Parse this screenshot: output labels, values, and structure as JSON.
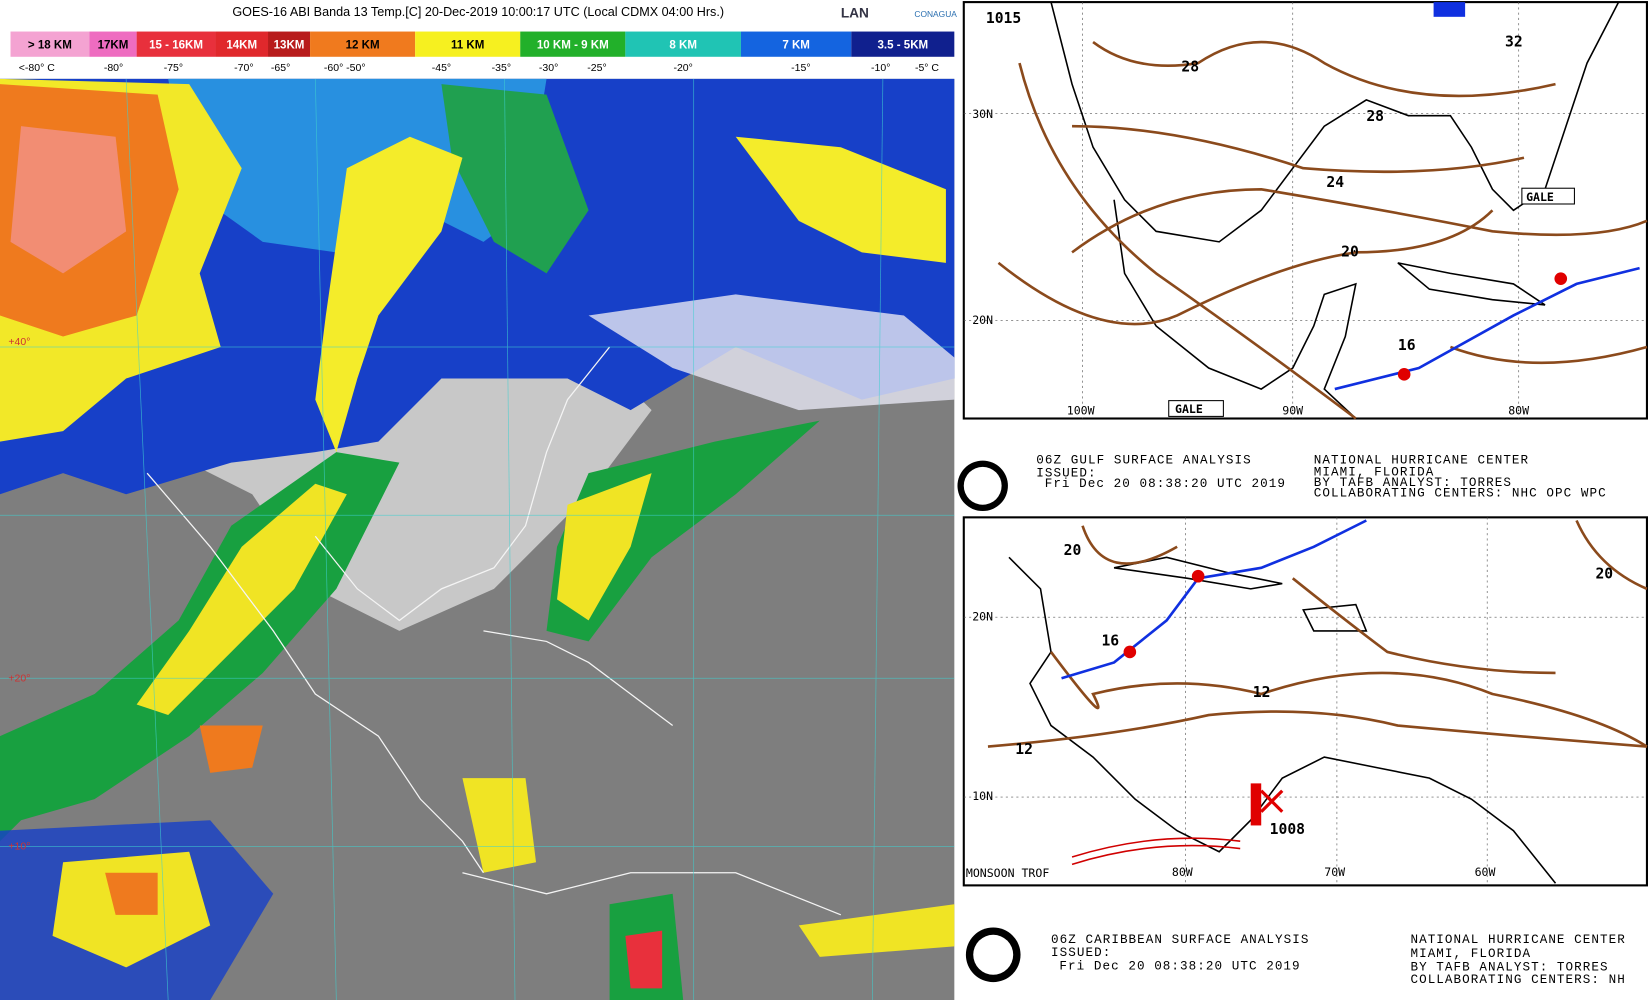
{
  "satellite": {
    "title": "GOES-16 ABI Banda 13 Temp.[C] 20-Dec-2019 10:00:17 UTC (Local CDMX  04:00 Hrs.)",
    "logos": [
      "LAN",
      "CONAGUA"
    ],
    "legend": [
      {
        "label": "> 18 KM",
        "color": "#f4a3d2"
      },
      {
        "label": "17KM",
        "color": "#ee6cc0"
      },
      {
        "label": "15 - 16KM",
        "color": "#e8303c"
      },
      {
        "label": "14KM",
        "color": "#e0282c"
      },
      {
        "label": "13KM",
        "color": "#b81c1c"
      },
      {
        "label": "12 KM",
        "color": "#f07a1e"
      },
      {
        "label": "11 KM",
        "color": "#f6f020"
      },
      {
        "label": "10 KM - 9 KM",
        "color": "#22b02a"
      },
      {
        "label": "8 KM",
        "color": "#20c4b4"
      },
      {
        "label": "7 KM",
        "color": "#1464e0"
      },
      {
        "label": "3.5 - 5KM",
        "color": "#10208e"
      }
    ],
    "temps": [
      "<-80° C",
      "-80°",
      "-75°",
      "-70°",
      "-65°",
      "-60° -50°",
      "-45°",
      "-35°",
      "-30°",
      "-25°",
      "-20°",
      "-15°",
      "-10°",
      "-5° C"
    ],
    "lat_labels": [
      "+40°",
      "+20°",
      "+10°"
    ]
  },
  "gulf_map": {
    "labels": [
      "1015",
      "28",
      "32",
      "28",
      "24",
      "20",
      "16",
      "30N",
      "20N",
      "100W",
      "90W",
      "80W",
      "GALE",
      "GALE"
    ],
    "header": {
      "title": "06Z GULF SURFACE ANALYSIS",
      "issued": "ISSUED:",
      "date": "Fri Dec 20 08:38:20 UTC 2019",
      "center": "NATIONAL HURRICANE CENTER",
      "place": "MIAMI, FLORIDA",
      "analyst": "BY TAFB ANALYST: TORRES",
      "collab": "COLLABORATING CENTERS: NHC OPC WPC"
    }
  },
  "caribbean_map": {
    "labels": [
      "20",
      "20",
      "16",
      "12",
      "12",
      "1008",
      "20N",
      "10N",
      "80W",
      "70W",
      "60W",
      "MONSOON TROF"
    ],
    "header": {
      "title": "06Z CARIBBEAN SURFACE ANALYSIS",
      "issued": "ISSUED:",
      "date": "Fri Dec 20 08:38:20 UTC 2019",
      "center": "NATIONAL HURRICANE CENTER",
      "place": "MIAMI, FLORIDA",
      "analyst": "BY TAFB ANALYST: TORRES",
      "collab": "COLLABORATING CENTERS: NH"
    }
  }
}
